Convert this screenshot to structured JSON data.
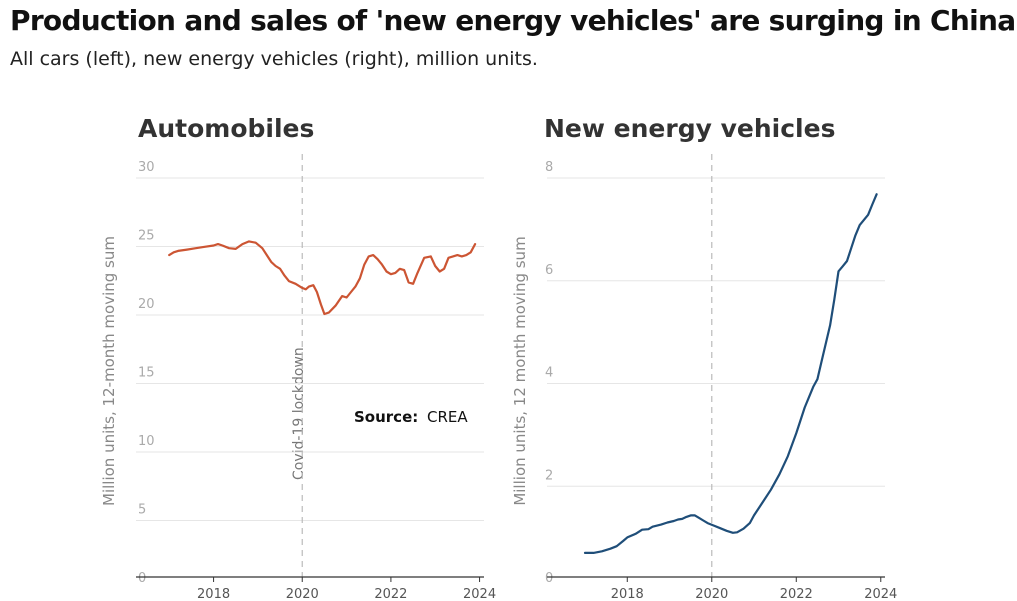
{
  "header": {
    "title": "Production and sales of 'new energy vehicles' are surging in China",
    "subtitle": "All cars (left), new energy vehicles (right), million units."
  },
  "source": {
    "label": "Source:",
    "value": "CREA"
  },
  "colors": {
    "automobiles": "#cc5533",
    "nev": "#1f4e79",
    "grid": "#e6e6e6",
    "axis": "#333333",
    "lockdown": "#bbbbbb"
  },
  "chart_data": [
    {
      "type": "line",
      "title": "Automobiles",
      "ylabel": "Million units, 12-month moving sum",
      "xlim": [
        2016.25,
        2024.1
      ],
      "ylim": [
        0,
        30
      ],
      "yticks": [
        0,
        5,
        10,
        15,
        20,
        25,
        30
      ],
      "xticks": [
        2018,
        2020,
        2022,
        2024
      ],
      "grid": true,
      "annotation": {
        "label": "Covid-19 lockdown",
        "x": 2020
      },
      "series": [
        {
          "x": [
            2017.0,
            2017.1,
            2017.2,
            2017.4,
            2017.6,
            2017.8,
            2018.0,
            2018.1,
            2018.2,
            2018.35,
            2018.5,
            2018.65,
            2018.8,
            2018.95,
            2019.1,
            2019.2,
            2019.3,
            2019.4,
            2019.5,
            2019.6,
            2019.7,
            2019.85,
            2020.0,
            2020.08,
            2020.15,
            2020.25,
            2020.33,
            2020.42,
            2020.5,
            2020.6,
            2020.75,
            2020.9,
            2021.0,
            2021.1,
            2021.2,
            2021.3,
            2021.4,
            2021.5,
            2021.6,
            2021.7,
            2021.8,
            2021.9,
            2022.0,
            2022.1,
            2022.2,
            2022.3,
            2022.4,
            2022.5,
            2022.6,
            2022.75,
            2022.9,
            2023.0,
            2023.1,
            2023.2,
            2023.3,
            2023.4,
            2023.5,
            2023.6,
            2023.7,
            2023.8,
            2023.9
          ],
          "values": [
            23.5,
            23.7,
            23.8,
            23.9,
            24.0,
            24.1,
            24.2,
            24.3,
            24.2,
            24.0,
            23.95,
            24.3,
            24.5,
            24.4,
            24.0,
            23.5,
            23.0,
            22.7,
            22.5,
            22.0,
            21.6,
            21.4,
            21.1,
            21.0,
            21.2,
            21.3,
            20.8,
            19.9,
            19.2,
            19.3,
            19.8,
            20.5,
            20.4,
            20.8,
            21.2,
            21.8,
            22.8,
            23.4,
            23.5,
            23.2,
            22.8,
            22.3,
            22.1,
            22.2,
            22.5,
            22.4,
            21.5,
            21.4,
            22.2,
            23.3,
            23.4,
            22.7,
            22.3,
            22.5,
            23.3,
            23.4,
            23.5,
            23.4,
            23.5,
            23.7,
            24.3
          ]
        }
      ]
    },
    {
      "type": "line",
      "title": "New energy vehicles",
      "ylabel": "Million units, 12 month moving sum",
      "xlim": [
        2016.1,
        2024.1
      ],
      "ylim": [
        0,
        8
      ],
      "yticks": [
        0,
        2,
        4,
        6,
        8
      ],
      "xticks": [
        2018,
        2020,
        2022,
        2024
      ],
      "grid": true,
      "annotation": {
        "label": "",
        "x": 2020
      },
      "series": [
        {
          "x": [
            2017.0,
            2017.2,
            2017.4,
            2017.6,
            2017.75,
            2017.9,
            2018.0,
            2018.2,
            2018.35,
            2018.5,
            2018.6,
            2018.8,
            2018.95,
            2019.1,
            2019.2,
            2019.3,
            2019.4,
            2019.5,
            2019.6,
            2019.7,
            2019.8,
            2019.9,
            2020.05,
            2020.2,
            2020.35,
            2020.5,
            2020.6,
            2020.75,
            2020.9,
            2021.0,
            2021.2,
            2021.4,
            2021.6,
            2021.8,
            2022.0,
            2022.2,
            2022.4,
            2022.5,
            2022.6,
            2022.8,
            2022.9,
            2023.0,
            2023.1,
            2023.2,
            2023.3,
            2023.4,
            2023.5,
            2023.6,
            2023.7,
            2023.8,
            2023.9
          ],
          "values": [
            0.47,
            0.47,
            0.5,
            0.55,
            0.6,
            0.7,
            0.77,
            0.84,
            0.92,
            0.93,
            0.98,
            1.02,
            1.06,
            1.09,
            1.12,
            1.13,
            1.17,
            1.2,
            1.2,
            1.15,
            1.1,
            1.05,
            1.0,
            0.95,
            0.9,
            0.86,
            0.87,
            0.94,
            1.05,
            1.2,
            1.45,
            1.7,
            2.0,
            2.35,
            2.8,
            3.3,
            3.7,
            3.85,
            4.2,
            4.9,
            5.4,
            5.95,
            6.05,
            6.15,
            6.4,
            6.65,
            6.85,
            6.95,
            7.05,
            7.25,
            7.45
          ]
        }
      ]
    }
  ]
}
